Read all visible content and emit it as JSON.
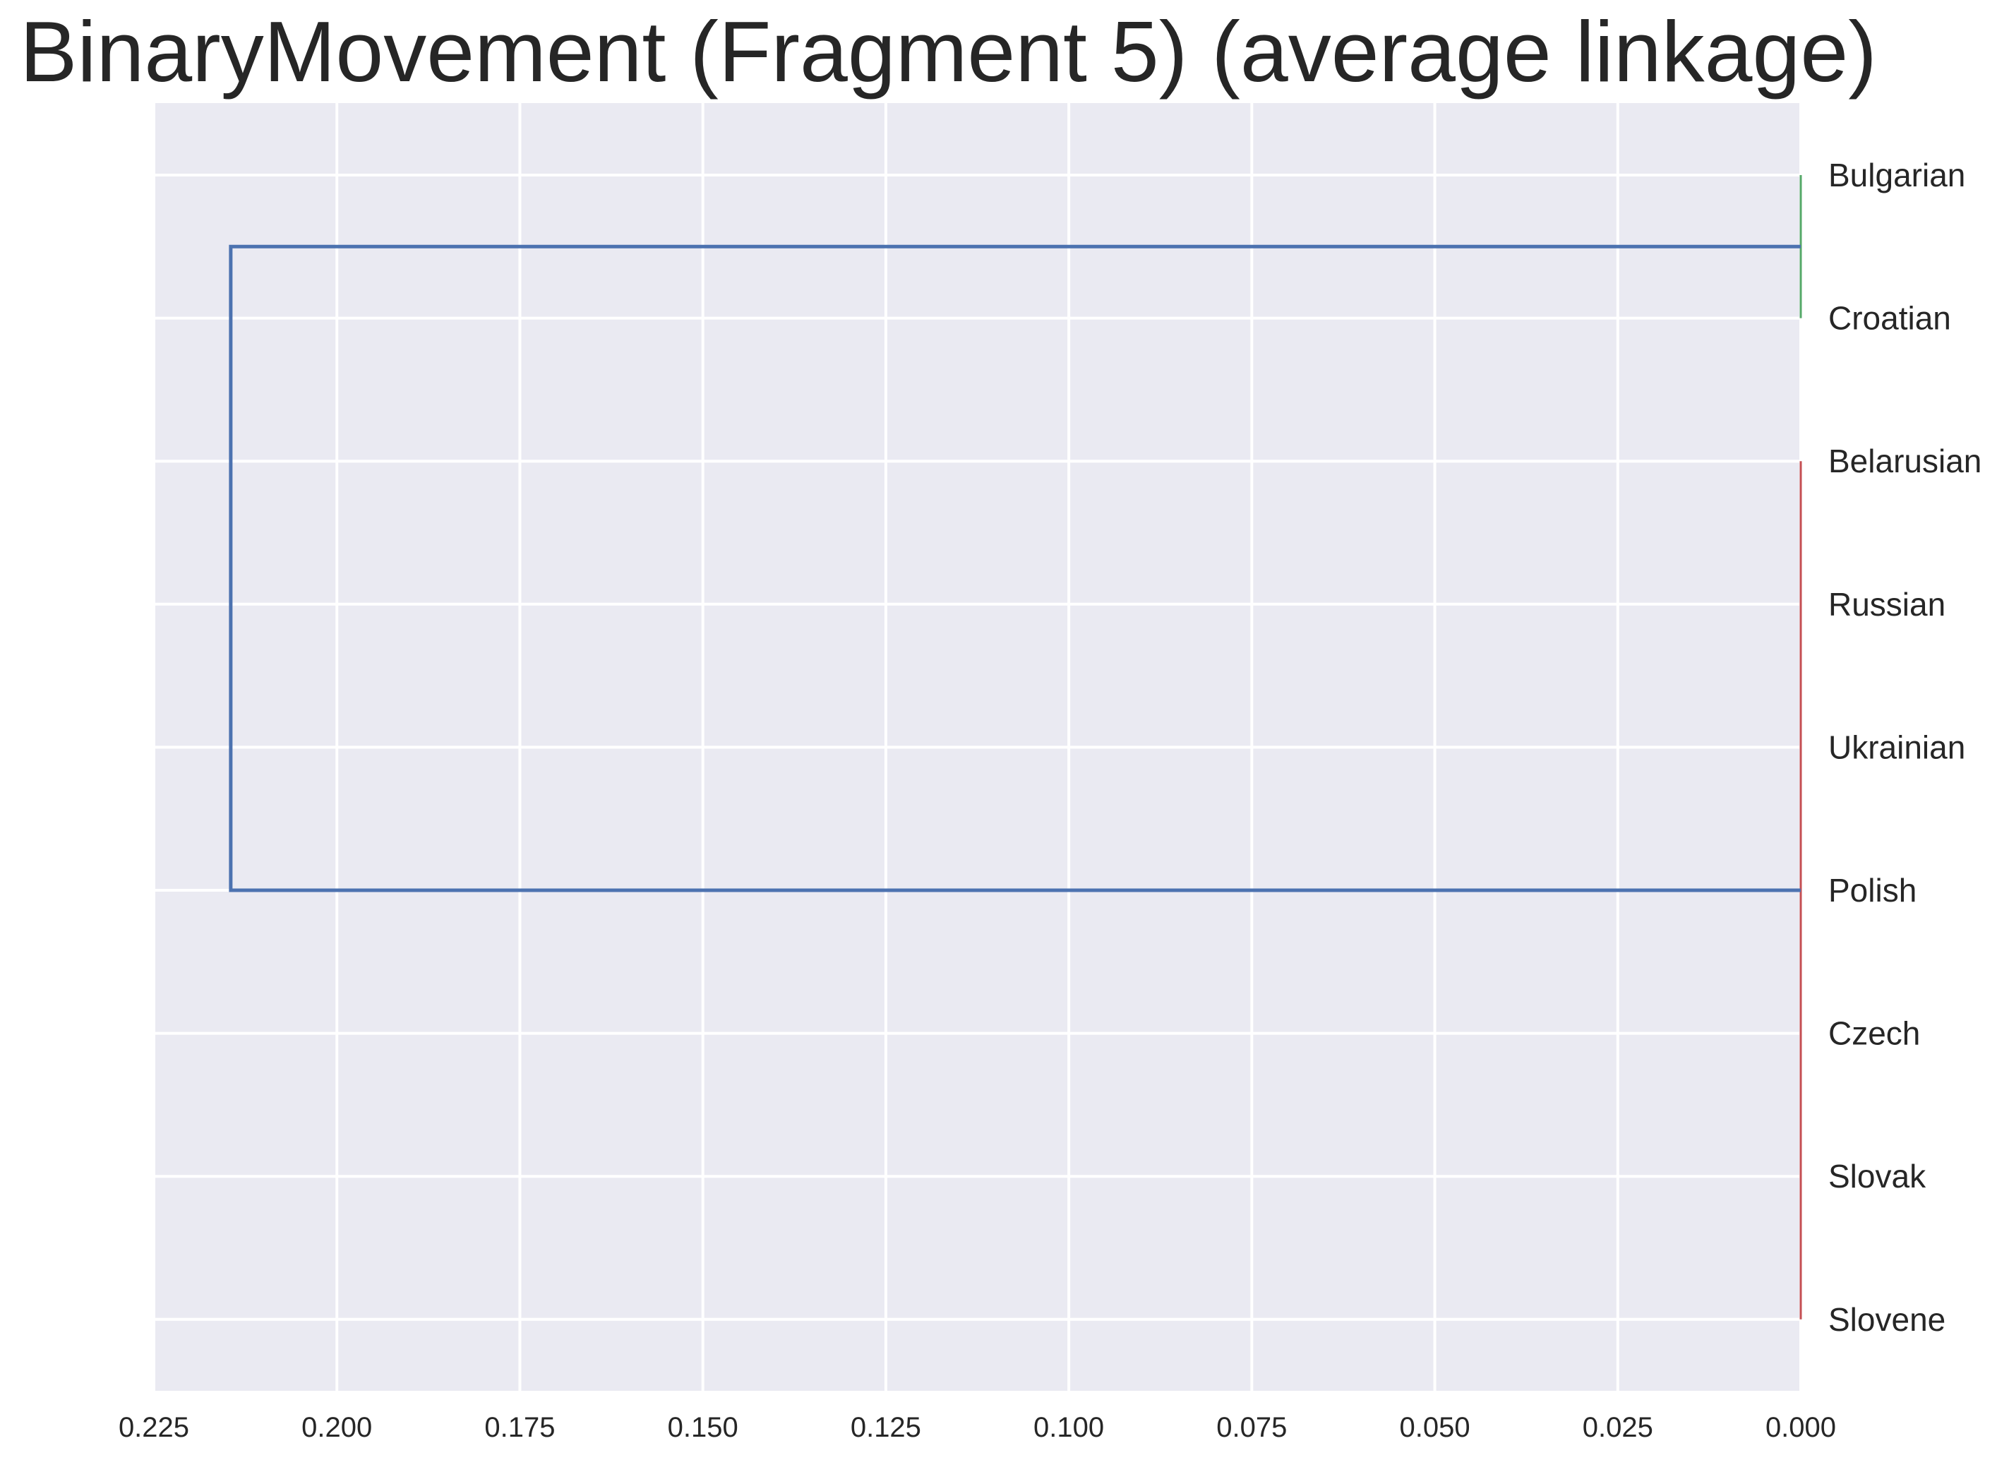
{
  "chart_data": {
    "type": "dendrogram",
    "title": "BinaryMovement (Fragment 5) (average linkage)",
    "orientation": "left",
    "xlim": [
      0.225,
      0.0
    ],
    "xticks": [
      "0.225",
      "0.200",
      "0.175",
      "0.150",
      "0.125",
      "0.100",
      "0.075",
      "0.050",
      "0.025",
      "0.000"
    ],
    "xtick_values": [
      0.225,
      0.2,
      0.175,
      0.15,
      0.125,
      0.1,
      0.075,
      0.05,
      0.025,
      0.0
    ],
    "leaves": [
      "Bulgarian",
      "Croatian",
      "Belarusian",
      "Russian",
      "Ukrainian",
      "Polish",
      "Czech",
      "Slovak",
      "Slovene"
    ],
    "clusters": [
      {
        "members": [
          "Bulgarian",
          "Croatian"
        ],
        "height": 0.0,
        "color": "#55a868"
      },
      {
        "members": [
          "Belarusian",
          "Russian",
          "Ukrainian",
          "Polish",
          "Czech",
          "Slovak",
          "Slovene"
        ],
        "height": 0.0,
        "color": "#c44e52"
      }
    ],
    "root_merge": {
      "height": 0.2145,
      "left_members": [
        "Bulgarian",
        "Croatian"
      ],
      "right_members": [
        "Belarusian",
        "Russian",
        "Ukrainian",
        "Polish",
        "Czech",
        "Slovak",
        "Slovene"
      ],
      "color": "#4c72b0"
    },
    "grid": true,
    "colors": {
      "background": "#eaeaf2",
      "grid": "#ffffff",
      "root_link": "#4c72b0",
      "cluster_1": "#55a868",
      "cluster_2": "#c44e52"
    }
  }
}
